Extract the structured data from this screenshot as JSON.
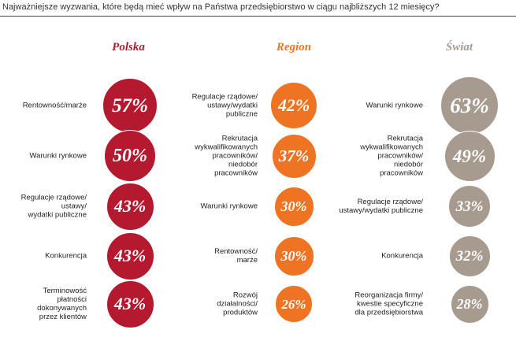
{
  "chart_data": {
    "type": "bubble",
    "title": "Najważniejsze wyzwania, które będą mieć wpływ na Państwa przedsiębiorstwo w ciągu najbliższych 12 miesięcy?",
    "groups": [
      {
        "name": "Polska",
        "color": "#b5192f",
        "items": [
          {
            "label": "Rentowność/marże",
            "value": 57,
            "display": "57%"
          },
          {
            "label": "Warunki rynkowe",
            "value": 50,
            "display": "50%"
          },
          {
            "label": "Regulacje rządowe/\nustawy/\nwydatki publiczne",
            "value": 43,
            "display": "43%"
          },
          {
            "label": "Konkurencja",
            "value": 43,
            "display": "43%"
          },
          {
            "label": "Terminowość\npłatności\ndokonywanych\nprzez klientów",
            "value": 43,
            "display": "43%"
          }
        ]
      },
      {
        "name": "Region",
        "color": "#ee7322",
        "items": [
          {
            "label": "Regulacje rządowe/\nustawy/wydatki\npubliczne",
            "value": 42,
            "display": "42%"
          },
          {
            "label": "Rekrutacja\nwykwalifikowanych\npracowników/\nniedobór\npracowników",
            "value": 37,
            "display": "37%"
          },
          {
            "label": "Warunki rynkowe",
            "value": 30,
            "display": "30%"
          },
          {
            "label": "Rentowność/\nmarże",
            "value": 30,
            "display": "30%"
          },
          {
            "label": "Rozwój\ndziałalności/\nproduktów",
            "value": 26,
            "display": "26%"
          }
        ]
      },
      {
        "name": "Świat",
        "color": "#a79b90",
        "items": [
          {
            "label": "Warunki rynkowe",
            "value": 63,
            "display": "63%"
          },
          {
            "label": "Rekrutacja\nwykwalifikowanych\npracowników/\nniedobór\npracowników",
            "value": 49,
            "display": "49%"
          },
          {
            "label": "Regulacje rządowe/\nustawy/wydatki publiczne",
            "value": 33,
            "display": "33%"
          },
          {
            "label": "Konkurencja",
            "value": 32,
            "display": "32%"
          },
          {
            "label": "Reorganizacja firmy/\nkwestie specyficzne\ndla przedsiębiorstwa",
            "value": 28,
            "display": "28%"
          }
        ]
      }
    ]
  }
}
